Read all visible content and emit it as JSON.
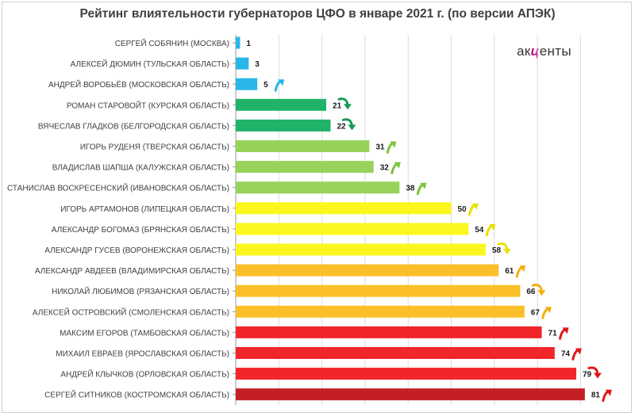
{
  "chart_data": {
    "type": "bar",
    "orientation": "horizontal",
    "title": "Рейтинг влиятельности губернаторов ЦФО в январе 2021 г. (по версии АПЭК)",
    "xlabel": "",
    "ylabel": "",
    "xlim": [
      0,
      90
    ],
    "grid": true,
    "legend": "none",
    "logo": {
      "prefix": "ак",
      "highlight": "ц",
      "suffix": "енты",
      "highlight_color": "#c8008c"
    },
    "rows": [
      {
        "label": "СЕРГЕЙ СОБЯНИН (МОСКВА)",
        "value": 1,
        "color": "#29b6e8",
        "trend": "none"
      },
      {
        "label": "АЛЕКСЕЙ ДЮМИН (ТУЛЬСКАЯ ОБЛАСТЬ)",
        "value": 3,
        "color": "#29b6e8",
        "trend": "none"
      },
      {
        "label": "АНДРЕЙ ВОРОБЬЁВ (МОСКОВСКАЯ ОБЛАСТЬ)",
        "value": 5,
        "color": "#29b6e8",
        "trend": "up",
        "trend_color": "#29b6e8"
      },
      {
        "label": "РОМАН СТАРОВОЙТ (КУРСКАЯ ОБЛАСТЬ)",
        "value": 21,
        "color": "#1fb36a",
        "trend": "down",
        "trend_color": "#1b9a55"
      },
      {
        "label": "ВЯЧЕСЛАВ ГЛАДКОВ (БЕЛГОРОДСКАЯ ОБЛАСТЬ)",
        "value": 22,
        "color": "#1fb36a",
        "trend": "down",
        "trend_color": "#1b9a55"
      },
      {
        "label": "ИГОРЬ РУДЕНЯ (ТВЕРСКАЯ ОБЛАСТЬ)",
        "value": 31,
        "color": "#97d35a",
        "trend": "up",
        "trend_color": "#7cc23a"
      },
      {
        "label": "ВЛАДИСЛАВ ШАПША (КАЛУЖСКАЯ ОБЛАСТЬ)",
        "value": 32,
        "color": "#97d35a",
        "trend": "up",
        "trend_color": "#7cc23a"
      },
      {
        "label": "СТАНИСЛАВ ВОСКРЕСЕНСКИЙ (ИВАНОВСКАЯ ОБЛАСТЬ)",
        "value": 38,
        "color": "#97d35a",
        "trend": "up",
        "trend_color": "#7cc23a"
      },
      {
        "label": "ИГОРЬ АРТАМОНОВ (ЛИПЕЦКАЯ ОБЛАСТЬ)",
        "value": 50,
        "color": "#fbf71e",
        "trend": "up",
        "trend_color": "#e8e000"
      },
      {
        "label": "АЛЕКСАНДР БОГОМАЗ (БРЯНСКАЯ ОБЛАСТЬ)",
        "value": 54,
        "color": "#fbf71e",
        "trend": "up",
        "trend_color": "#e8e000"
      },
      {
        "label": "АЛЕКСАНДР ГУСЕВ (ВОРОНЕЖСКАЯ ОБЛАСТЬ)",
        "value": 58,
        "color": "#fbf71e",
        "trend": "down",
        "trend_color": "#e8e000"
      },
      {
        "label": "АЛЕКСАНДР АВДЕЕВ (ВЛАДИМИРСКАЯ ОБЛАСТЬ)",
        "value": 61,
        "color": "#fbbf2a",
        "trend": "up",
        "trend_color": "#f5ad10"
      },
      {
        "label": "НИКОЛАЙ ЛЮБИМОВ (РЯЗАНСКАЯ ОБЛАСТЬ)",
        "value": 66,
        "color": "#fbbf2a",
        "trend": "down",
        "trend_color": "#f5ad10"
      },
      {
        "label": "АЛЕКСЕЙ ОСТРОВСКИЙ (СМОЛЕНСКАЯ ОБЛАСТЬ)",
        "value": 67,
        "color": "#fbbf2a",
        "trend": "up",
        "trend_color": "#f5ad10"
      },
      {
        "label": "МАКСИМ ЕГОРОВ (ТАМБОВСКАЯ ОБЛАСТЬ)",
        "value": 71,
        "color": "#f0262a",
        "trend": "up",
        "trend_color": "#e01818"
      },
      {
        "label": "МИХАИЛ ЕВРАЕВ (ЯРОСЛАВСКАЯ ОБЛАСТЬ)",
        "value": 74,
        "color": "#f0262a",
        "trend": "up",
        "trend_color": "#e01818"
      },
      {
        "label": "АНДРЕЙ КЛЫЧКОВ (ОРЛОВСКАЯ ОБЛАСТЬ)",
        "value": 79,
        "color": "#f0262a",
        "trend": "down",
        "trend_color": "#e01818"
      },
      {
        "label": "СЕРГЕЙ СИТНИКОВ (КОСТРОМСКАЯ ОБЛАСТЬ)",
        "value": 81,
        "color": "#c41f24",
        "trend": "up",
        "trend_color": "#e01818"
      }
    ]
  }
}
